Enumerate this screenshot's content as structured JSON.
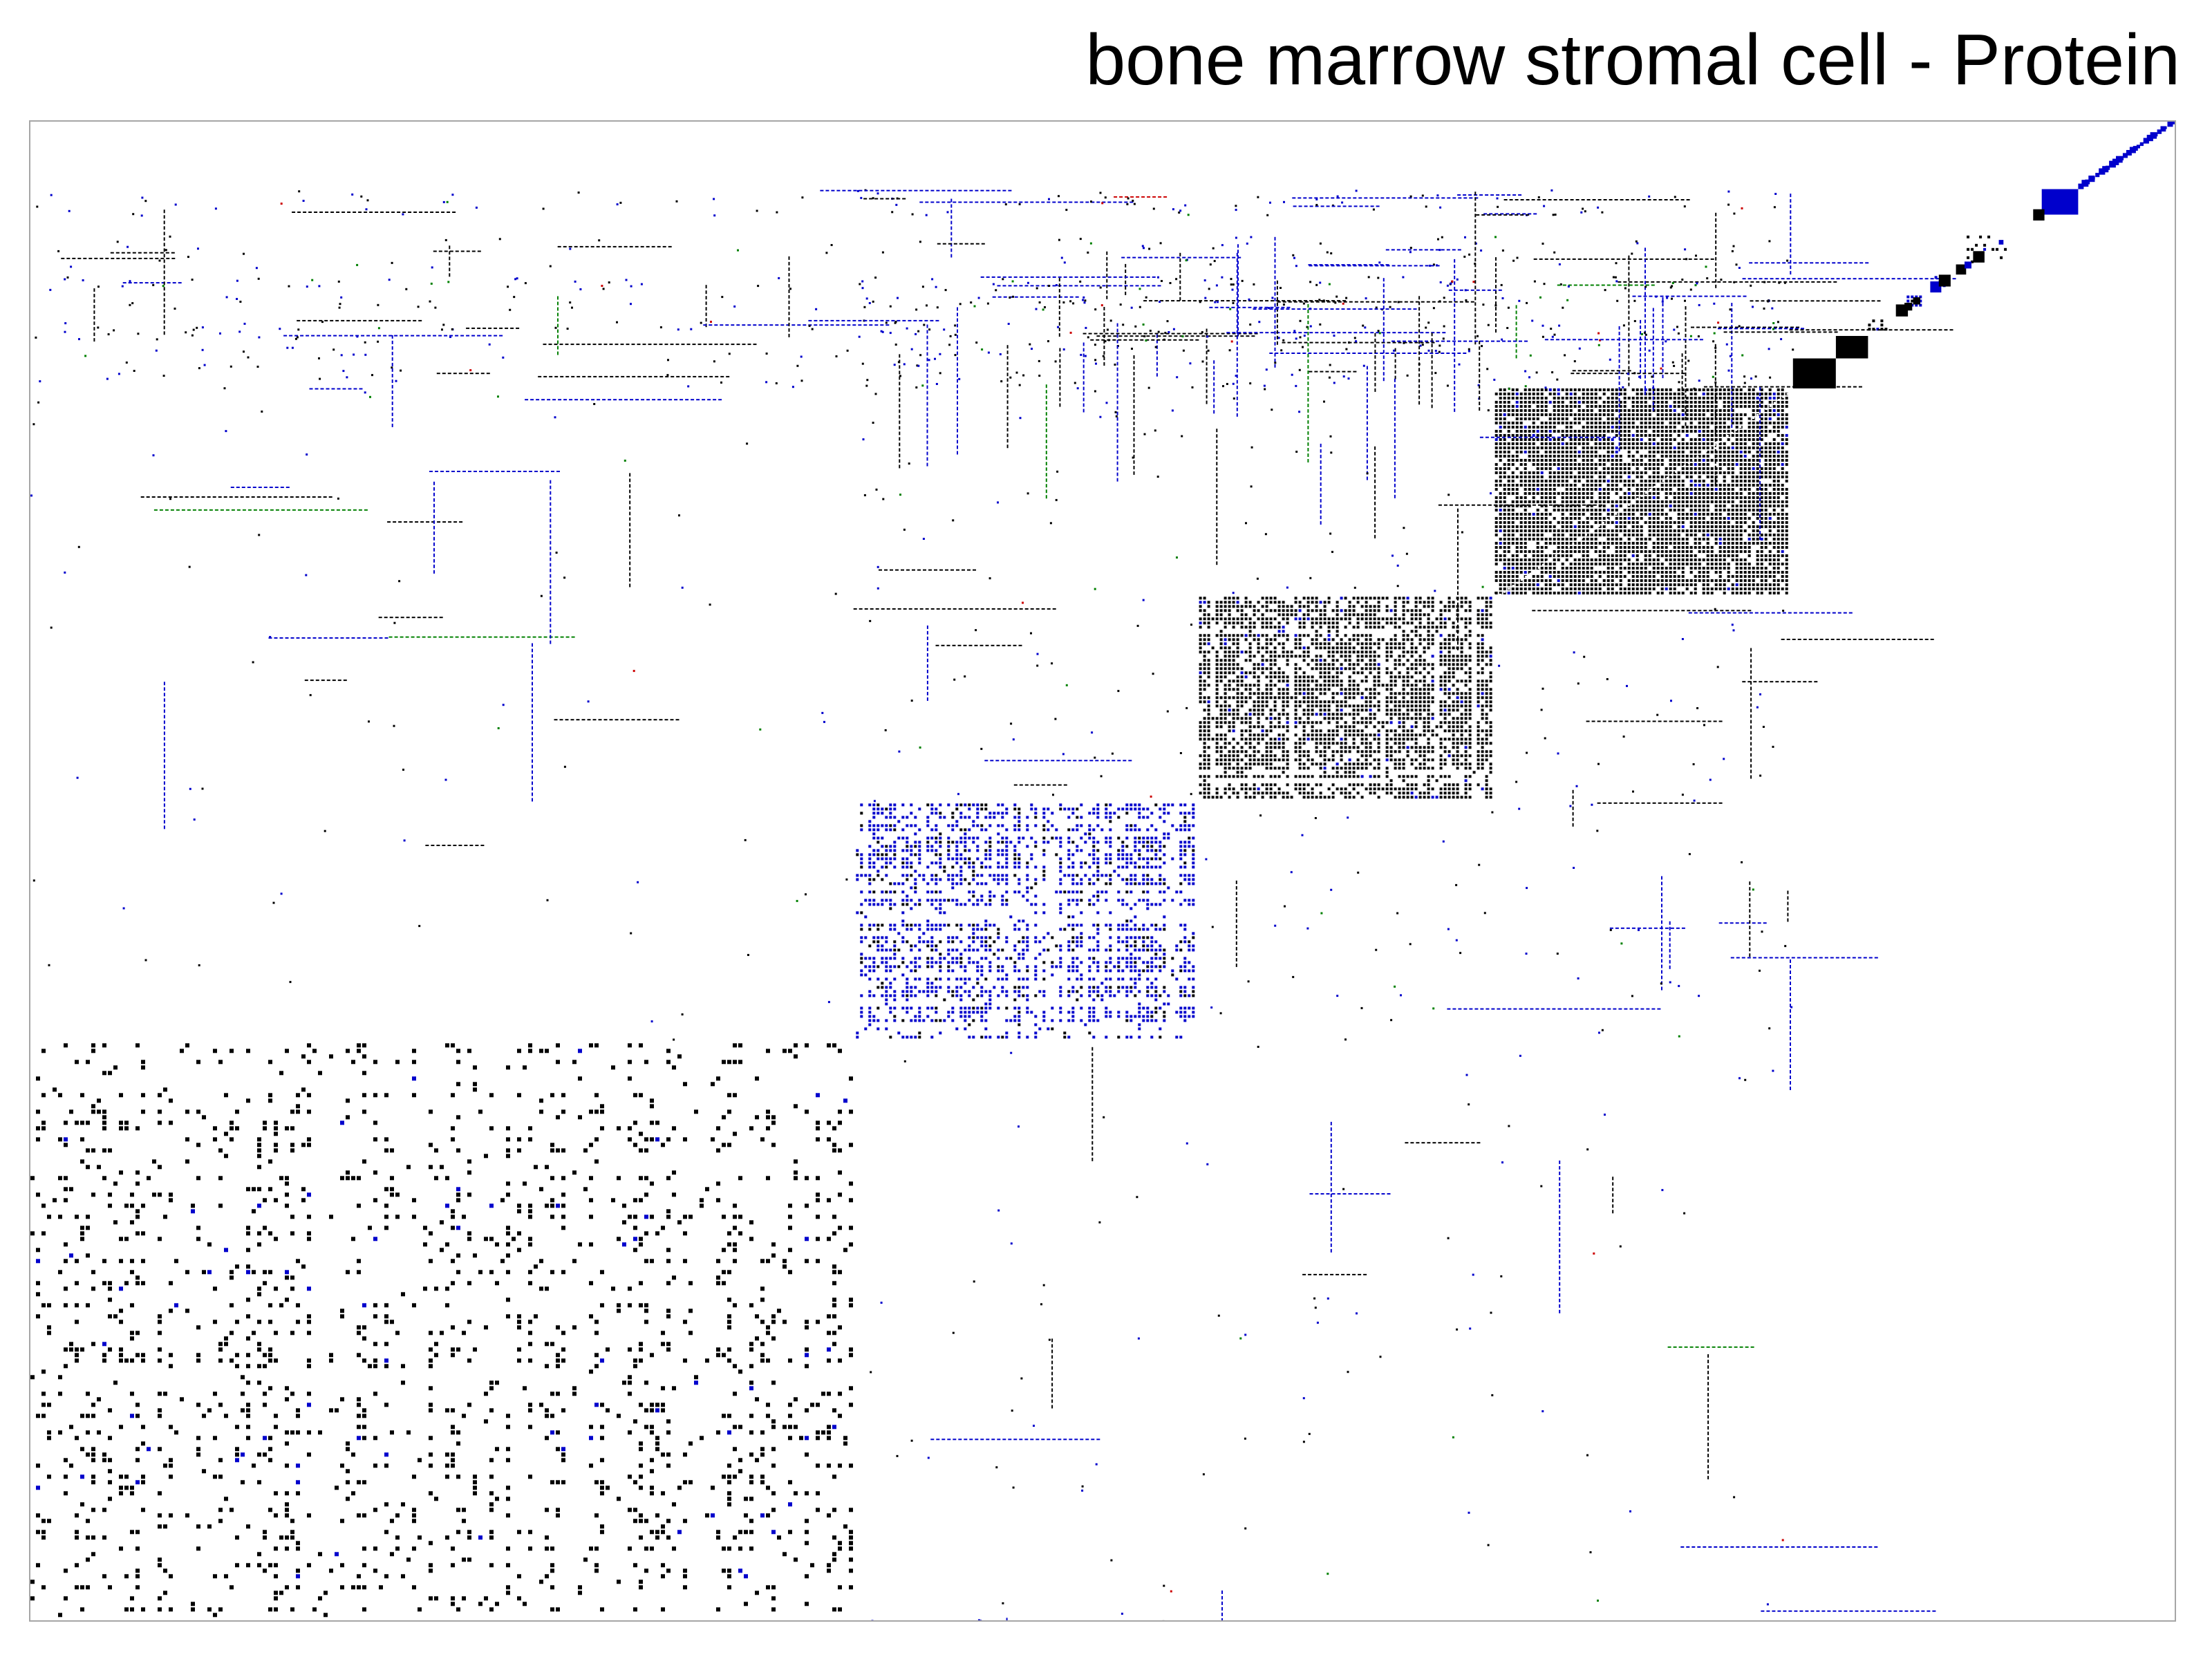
{
  "chart_data": {
    "type": "heatmap",
    "title": "bone marrow stromal cell - Protein",
    "xlabel": "",
    "ylabel": "",
    "grid": false,
    "legend": "none",
    "matrix_order": "diagonal-top-right",
    "colors": {
      "black": "#000000",
      "blue": "#0000cc",
      "green": "#008000",
      "red": "#cc0000",
      "frame": "#a6a6a6"
    },
    "clusters": [
      {
        "start": 0.0,
        "end": 0.385,
        "color": "black",
        "density": 0.42,
        "style": "sparse"
      },
      {
        "start": 0.385,
        "end": 0.545,
        "color": "blue",
        "density": 0.62,
        "style": "dense"
      },
      {
        "start": 0.545,
        "end": 0.683,
        "color": "black",
        "density": 0.72,
        "style": "dense"
      },
      {
        "start": 0.683,
        "end": 0.822,
        "color": "black",
        "density": 0.86,
        "style": "dense"
      },
      {
        "start": 0.822,
        "end": 0.842,
        "color": "black",
        "density": 1.0,
        "style": "solid"
      },
      {
        "start": 0.842,
        "end": 0.857,
        "color": "black",
        "density": 1.0,
        "style": "solid"
      },
      {
        "start": 0.857,
        "end": 0.868,
        "color": "black",
        "density": 0.8,
        "style": "dense"
      },
      {
        "start": 0.875,
        "end": 0.884,
        "color": "blue",
        "density": 0.8,
        "style": "dense"
      },
      {
        "start": 0.888,
        "end": 0.897,
        "color": "blue",
        "density": 0.7,
        "style": "dense"
      },
      {
        "start": 0.903,
        "end": 0.924,
        "color": "black",
        "density": 0.5,
        "style": "dense"
      },
      {
        "start": 0.938,
        "end": 0.955,
        "color": "blue",
        "density": 0.95,
        "style": "solid"
      }
    ],
    "diagonal_tail": {
      "start": 0.955,
      "end": 1.0,
      "color": "blue"
    }
  }
}
